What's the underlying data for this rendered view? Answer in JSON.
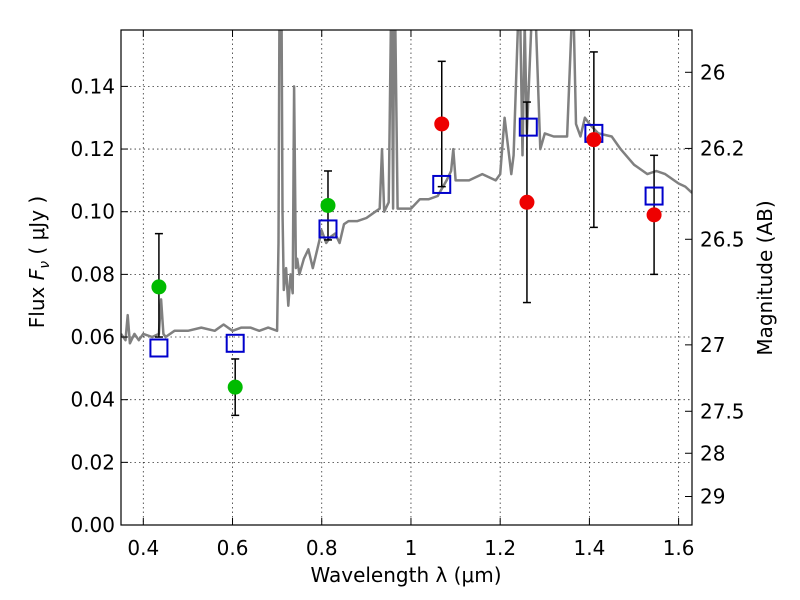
{
  "chart_data": {
    "type": "scatter",
    "title": "",
    "xlabel": "Wavelength  λ (μm)",
    "ylabel": "Flux  Fν  ( μJy )",
    "ylabel_right": "Magnitude (AB)",
    "xlim": [
      0.35,
      1.63
    ],
    "ylim": [
      0.0,
      0.158
    ],
    "grid": true,
    "x_ticks": [
      0.4,
      0.6,
      0.8,
      1.0,
      1.2,
      1.4,
      1.6
    ],
    "x_tick_labels": [
      "0.4",
      "0.6",
      "0.8",
      "1",
      "1.2",
      "1.4",
      "1.6"
    ],
    "y_ticks": [
      0.0,
      0.02,
      0.04,
      0.06,
      0.08,
      0.1,
      0.12,
      0.14
    ],
    "y_tick_labels": [
      "0.00",
      "0.02",
      "0.04",
      "0.06",
      "0.08",
      "0.10",
      "0.12",
      "0.14"
    ],
    "right_ticks": [
      {
        "label": "26",
        "flux": 0.1445
      },
      {
        "label": "26.2",
        "flux": 0.1202
      },
      {
        "label": "26.5",
        "flux": 0.0912
      },
      {
        "label": "27",
        "flux": 0.0575
      },
      {
        "label": "27.5",
        "flux": 0.0363
      },
      {
        "label": "28",
        "flux": 0.0229
      },
      {
        "label": "29",
        "flux": 0.0091
      }
    ],
    "series": [
      {
        "name": "Observed photometry (green)",
        "marker": "circle",
        "color": "#00bb00",
        "points": [
          {
            "x": 0.435,
            "y": 0.076,
            "err_low": 0.06,
            "err_high": 0.093
          },
          {
            "x": 0.606,
            "y": 0.044,
            "err_low": 0.035,
            "err_high": 0.053
          },
          {
            "x": 0.814,
            "y": 0.102,
            "err_low": 0.091,
            "err_high": 0.113
          }
        ]
      },
      {
        "name": "Observed photometry (red)",
        "marker": "circle",
        "color": "#ee0000",
        "points": [
          {
            "x": 1.069,
            "y": 0.128,
            "err_low": 0.108,
            "err_high": 0.148
          },
          {
            "x": 1.26,
            "y": 0.103,
            "err_low": 0.071,
            "err_high": 0.135
          },
          {
            "x": 1.41,
            "y": 0.123,
            "err_low": 0.095,
            "err_high": 0.151
          },
          {
            "x": 1.545,
            "y": 0.099,
            "err_low": 0.08,
            "err_high": 0.118
          }
        ]
      },
      {
        "name": "Model photometry",
        "marker": "open-square",
        "color": "#0000cc",
        "points": [
          {
            "x": 0.435,
            "y": 0.0565
          },
          {
            "x": 0.606,
            "y": 0.058
          },
          {
            "x": 0.814,
            "y": 0.0945
          },
          {
            "x": 1.069,
            "y": 0.1087
          },
          {
            "x": 1.263,
            "y": 0.127
          },
          {
            "x": 1.41,
            "y": 0.125
          },
          {
            "x": 1.545,
            "y": 0.105
          }
        ]
      },
      {
        "name": "Model spectrum",
        "marker": "line",
        "color": "#808080",
        "x": [
          0.35,
          0.36,
          0.365,
          0.37,
          0.38,
          0.39,
          0.4,
          0.42,
          0.435,
          0.44,
          0.445,
          0.45,
          0.47,
          0.5,
          0.53,
          0.56,
          0.58,
          0.6,
          0.62,
          0.64,
          0.66,
          0.68,
          0.7,
          0.703,
          0.705,
          0.71,
          0.712,
          0.715,
          0.72,
          0.725,
          0.73,
          0.735,
          0.738,
          0.742,
          0.745,
          0.75,
          0.76,
          0.77,
          0.78,
          0.79,
          0.8,
          0.81,
          0.815,
          0.82,
          0.83,
          0.84,
          0.85,
          0.86,
          0.88,
          0.9,
          0.92,
          0.93,
          0.935,
          0.94,
          0.95,
          0.955,
          0.957,
          0.96,
          0.962,
          0.965,
          0.97,
          1.0,
          1.02,
          1.04,
          1.06,
          1.08,
          1.09,
          1.095,
          1.1,
          1.13,
          1.16,
          1.19,
          1.2,
          1.21,
          1.225,
          1.23,
          1.24,
          1.245,
          1.25,
          1.255,
          1.26,
          1.27,
          1.28,
          1.29,
          1.3,
          1.32,
          1.35,
          1.36,
          1.365,
          1.37,
          1.38,
          1.39,
          1.4,
          1.42,
          1.45,
          1.47,
          1.5,
          1.53,
          1.55,
          1.57,
          1.6,
          1.615,
          1.63
        ],
        "y": [
          0.061,
          0.059,
          0.067,
          0.058,
          0.061,
          0.059,
          0.061,
          0.06,
          0.061,
          0.072,
          0.061,
          0.06,
          0.062,
          0.062,
          0.063,
          0.062,
          0.064,
          0.062,
          0.063,
          0.063,
          0.062,
          0.063,
          0.062,
          0.09,
          0.16,
          0.16,
          0.1,
          0.075,
          0.082,
          0.07,
          0.08,
          0.074,
          0.14,
          0.082,
          0.085,
          0.08,
          0.085,
          0.088,
          0.082,
          0.088,
          0.094,
          0.09,
          0.091,
          0.092,
          0.093,
          0.09,
          0.096,
          0.097,
          0.097,
          0.098,
          0.1,
          0.101,
          0.12,
          0.1,
          0.103,
          0.16,
          0.16,
          0.101,
          0.16,
          0.16,
          0.101,
          0.101,
          0.104,
          0.104,
          0.105,
          0.11,
          0.113,
          0.12,
          0.11,
          0.11,
          0.112,
          0.11,
          0.112,
          0.13,
          0.112,
          0.118,
          0.16,
          0.16,
          0.118,
          0.16,
          0.125,
          0.16,
          0.16,
          0.12,
          0.125,
          0.124,
          0.124,
          0.16,
          0.16,
          0.128,
          0.124,
          0.13,
          0.128,
          0.125,
          0.124,
          0.12,
          0.115,
          0.112,
          0.113,
          0.112,
          0.109,
          0.108,
          0.106
        ]
      }
    ]
  }
}
